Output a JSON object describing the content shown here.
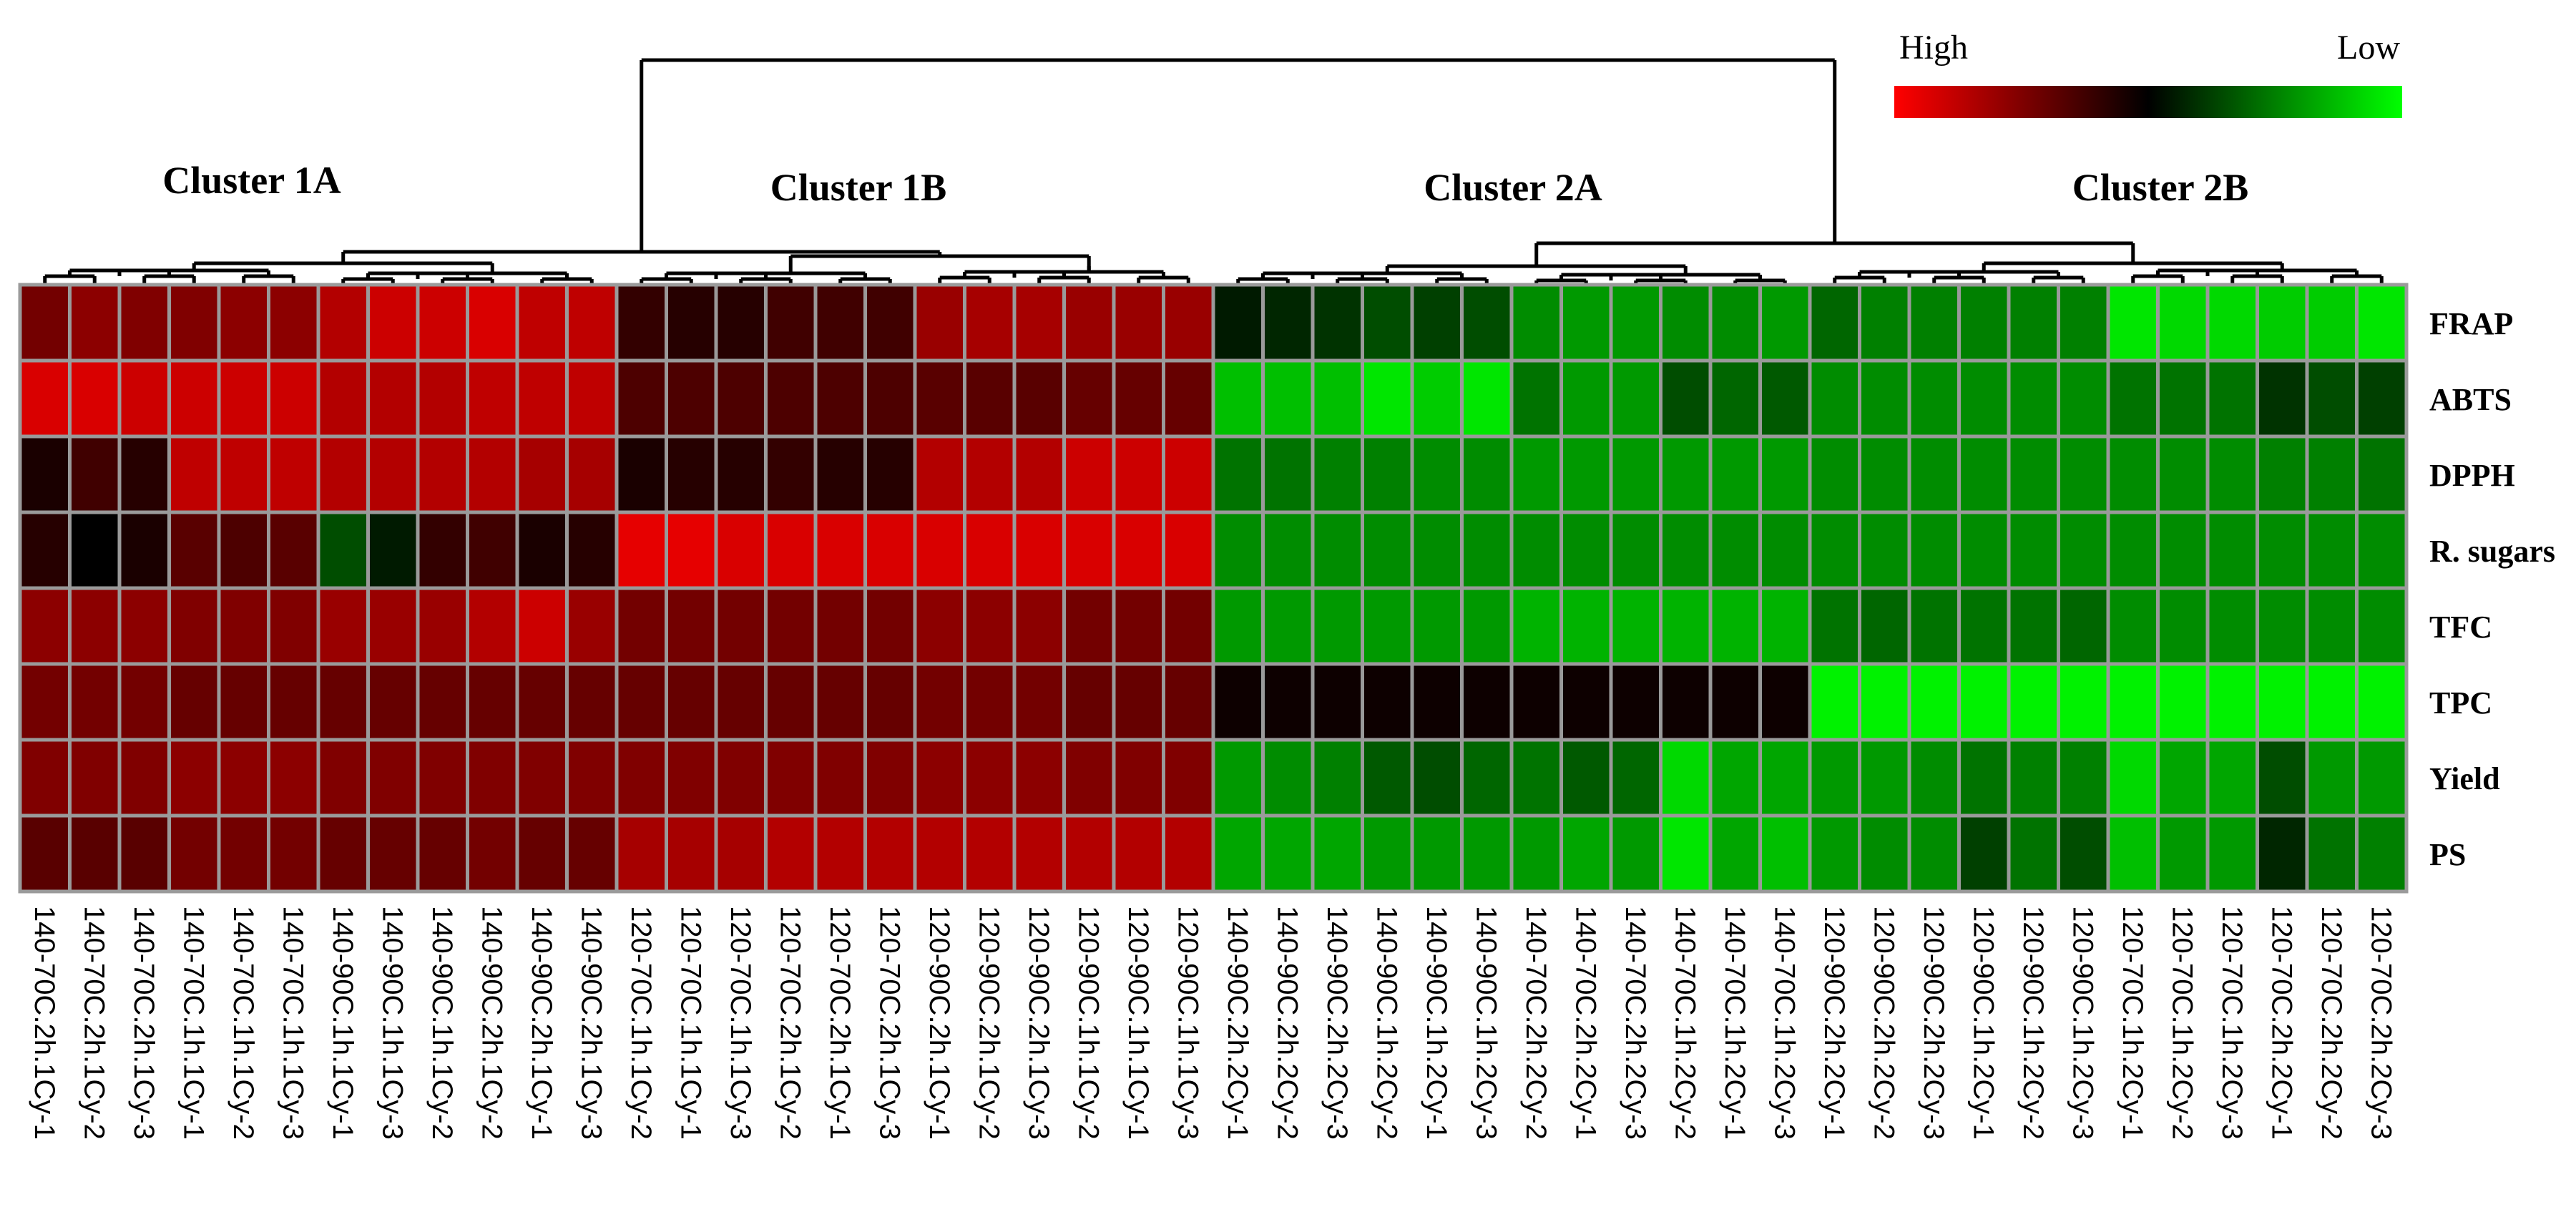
{
  "chart_data": {
    "type": "heatmap",
    "legend": {
      "high_label": "High",
      "low_label": "Low",
      "high_color": "#ff0000",
      "mid_color": "#000000",
      "low_color": "#00ff00"
    },
    "clusters": [
      "Cluster 1A",
      "Cluster 1B",
      "Cluster 2A",
      "Cluster 2B"
    ],
    "rows": [
      "FRAP",
      "ABTS",
      "DPPH",
      "R. sugars",
      "TFC",
      "TPC",
      "Yield",
      "PS"
    ],
    "columns": [
      "140-70C.2h.1Cy-1",
      "140-70C.2h.1Cy-2",
      "140-70C.2h.1Cy-3",
      "140-70C.1h.1Cy-1",
      "140-70C.1h.1Cy-2",
      "140-70C.1h.1Cy-3",
      "140-90C.1h.1Cy-1",
      "140-90C.1h.1Cy-3",
      "140-90C.1h.1Cy-2",
      "140-90C.2h.1Cy-2",
      "140-90C.2h.1Cy-1",
      "140-90C.2h.1Cy-3",
      "120-70C.1h.1Cy-2",
      "120-70C.1h.1Cy-1",
      "120-70C.1h.1Cy-3",
      "120-70C.2h.1Cy-2",
      "120-70C.2h.1Cy-1",
      "120-70C.2h.1Cy-3",
      "120-90C.2h.1Cy-1",
      "120-90C.2h.1Cy-2",
      "120-90C.2h.1Cy-3",
      "120-90C.1h.1Cy-2",
      "120-90C.1h.1Cy-1",
      "120-90C.1h.1Cy-3",
      "140-90C.2h.2Cy-1",
      "140-90C.2h.2Cy-2",
      "140-90C.2h.2Cy-3",
      "140-90C.1h.2Cy-2",
      "140-90C.1h.2Cy-1",
      "140-90C.1h.2Cy-3",
      "140-70C.2h.2Cy-2",
      "140-70C.2h.2Cy-1",
      "140-70C.2h.2Cy-3",
      "140-70C.1h.2Cy-2",
      "140-70C.1h.2Cy-1",
      "140-70C.1h.2Cy-3",
      "120-90C.2h.2Cy-1",
      "120-90C.2h.2Cy-2",
      "120-90C.2h.2Cy-3",
      "120-90C.1h.2Cy-1",
      "120-90C.1h.2Cy-2",
      "120-90C.1h.2Cy-3",
      "120-70C.1h.2Cy-1",
      "120-70C.1h.2Cy-2",
      "120-70C.1h.2Cy-3",
      "120-70C.2h.2Cy-1",
      "120-70C.2h.2Cy-2",
      "120-70C.2h.2Cy-3"
    ],
    "colorscale": "1 = High (red), 0 = mid (black), -1 = Low (green)",
    "values": [
      [
        0.45,
        0.55,
        0.5,
        0.5,
        0.55,
        0.55,
        0.7,
        0.8,
        0.8,
        0.85,
        0.75,
        0.75,
        0.2,
        0.15,
        0.15,
        0.25,
        0.25,
        0.25,
        0.6,
        0.65,
        0.65,
        0.6,
        0.6,
        0.6,
        -0.1,
        -0.15,
        -0.2,
        -0.3,
        -0.25,
        -0.3,
        -0.55,
        -0.6,
        -0.6,
        -0.55,
        -0.55,
        -0.6,
        -0.4,
        -0.5,
        -0.5,
        -0.5,
        -0.5,
        -0.5,
        -0.9,
        -0.85,
        -0.85,
        -0.8,
        -0.8,
        -0.9
      ],
      [
        0.85,
        0.85,
        0.8,
        0.8,
        0.8,
        0.8,
        0.7,
        0.7,
        0.7,
        0.75,
        0.75,
        0.75,
        0.3,
        0.3,
        0.3,
        0.3,
        0.3,
        0.3,
        0.35,
        0.35,
        0.35,
        0.4,
        0.4,
        0.4,
        -0.75,
        -0.75,
        -0.75,
        -0.9,
        -0.8,
        -0.9,
        -0.45,
        -0.6,
        -0.6,
        -0.3,
        -0.4,
        -0.35,
        -0.55,
        -0.55,
        -0.55,
        -0.55,
        -0.55,
        -0.55,
        -0.45,
        -0.45,
        -0.45,
        -0.2,
        -0.3,
        -0.25
      ],
      [
        0.1,
        0.25,
        0.15,
        0.75,
        0.75,
        0.75,
        0.7,
        0.7,
        0.7,
        0.7,
        0.65,
        0.65,
        0.1,
        0.15,
        0.15,
        0.2,
        0.15,
        0.15,
        0.7,
        0.7,
        0.7,
        0.8,
        0.8,
        0.8,
        -0.45,
        -0.45,
        -0.5,
        -0.5,
        -0.55,
        -0.55,
        -0.6,
        -0.6,
        -0.6,
        -0.6,
        -0.6,
        -0.6,
        -0.55,
        -0.55,
        -0.55,
        -0.55,
        -0.55,
        -0.55,
        -0.55,
        -0.55,
        -0.55,
        -0.5,
        -0.5,
        -0.45
      ],
      [
        0.15,
        0.0,
        0.1,
        0.35,
        0.3,
        0.35,
        -0.3,
        -0.1,
        0.2,
        0.25,
        0.1,
        0.15,
        0.9,
        0.9,
        0.85,
        0.85,
        0.85,
        0.85,
        0.85,
        0.85,
        0.85,
        0.85,
        0.85,
        0.85,
        -0.55,
        -0.55,
        -0.55,
        -0.55,
        -0.55,
        -0.55,
        -0.55,
        -0.55,
        -0.55,
        -0.55,
        -0.55,
        -0.55,
        -0.55,
        -0.55,
        -0.55,
        -0.55,
        -0.55,
        -0.55,
        -0.55,
        -0.55,
        -0.55,
        -0.55,
        -0.55,
        -0.55
      ],
      [
        0.55,
        0.55,
        0.55,
        0.5,
        0.5,
        0.5,
        0.6,
        0.6,
        0.6,
        0.7,
        0.8,
        0.6,
        0.45,
        0.45,
        0.45,
        0.45,
        0.45,
        0.45,
        0.55,
        0.55,
        0.55,
        0.45,
        0.45,
        0.45,
        -0.6,
        -0.6,
        -0.6,
        -0.6,
        -0.6,
        -0.6,
        -0.7,
        -0.7,
        -0.7,
        -0.7,
        -0.7,
        -0.7,
        -0.45,
        -0.4,
        -0.45,
        -0.45,
        -0.45,
        -0.4,
        -0.55,
        -0.55,
        -0.55,
        -0.55,
        -0.55,
        -0.55
      ],
      [
        0.45,
        0.45,
        0.45,
        0.4,
        0.4,
        0.4,
        0.4,
        0.4,
        0.4,
        0.4,
        0.4,
        0.4,
        0.4,
        0.4,
        0.4,
        0.4,
        0.4,
        0.4,
        0.45,
        0.45,
        0.45,
        0.4,
        0.4,
        0.4,
        0.05,
        0.05,
        0.05,
        0.05,
        0.05,
        0.05,
        0.05,
        0.05,
        0.05,
        0.05,
        0.05,
        0.05,
        -0.95,
        -0.95,
        -0.95,
        -0.95,
        -0.95,
        -0.95,
        -0.95,
        -0.95,
        -0.95,
        -0.95,
        -0.95,
        -0.95
      ],
      [
        0.5,
        0.5,
        0.5,
        0.55,
        0.55,
        0.55,
        0.5,
        0.5,
        0.5,
        0.5,
        0.5,
        0.5,
        0.5,
        0.5,
        0.5,
        0.5,
        0.5,
        0.5,
        0.55,
        0.55,
        0.55,
        0.5,
        0.5,
        0.5,
        -0.6,
        -0.55,
        -0.5,
        -0.35,
        -0.3,
        -0.4,
        -0.45,
        -0.35,
        -0.4,
        -0.85,
        -0.65,
        -0.65,
        -0.6,
        -0.6,
        -0.55,
        -0.45,
        -0.5,
        -0.5,
        -0.85,
        -0.65,
        -0.65,
        -0.3,
        -0.6,
        -0.6
      ],
      [
        0.35,
        0.35,
        0.35,
        0.45,
        0.45,
        0.45,
        0.4,
        0.4,
        0.4,
        0.45,
        0.4,
        0.4,
        0.65,
        0.65,
        0.65,
        0.7,
        0.7,
        0.7,
        0.7,
        0.7,
        0.7,
        0.7,
        0.7,
        0.7,
        -0.65,
        -0.65,
        -0.65,
        -0.6,
        -0.6,
        -0.6,
        -0.6,
        -0.65,
        -0.6,
        -0.9,
        -0.65,
        -0.75,
        -0.6,
        -0.55,
        -0.55,
        -0.25,
        -0.45,
        -0.3,
        -0.75,
        -0.6,
        -0.6,
        -0.15,
        -0.45,
        -0.5
      ]
    ]
  }
}
